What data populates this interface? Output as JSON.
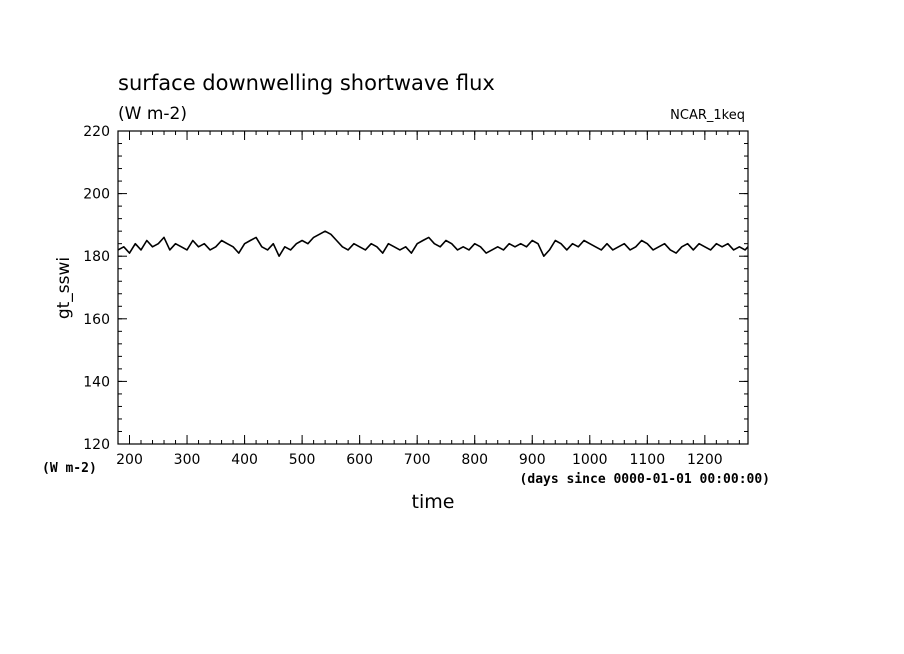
{
  "chart_data": {
    "type": "line",
    "title": "surface downwelling shortwave flux",
    "subtitle": "(W m-2)",
    "source_label": "NCAR_1keq",
    "xlabel": "time",
    "x_units": "(days since 0000-01-01 00:00:00)",
    "ylabel": "gt_sswi",
    "y_units": "(W m-2)",
    "xlim": [
      180,
      1275
    ],
    "ylim": [
      120,
      220
    ],
    "x_ticks": [
      200,
      300,
      400,
      500,
      600,
      700,
      800,
      900,
      1000,
      1100,
      1200
    ],
    "y_ticks": [
      120,
      140,
      160,
      180,
      200,
      220
    ],
    "grid": false,
    "series": [
      {
        "x": [
          180,
          190,
          200,
          210,
          220,
          230,
          240,
          250,
          260,
          270,
          280,
          290,
          300,
          310,
          320,
          330,
          340,
          350,
          360,
          370,
          380,
          390,
          400,
          410,
          420,
          430,
          440,
          450,
          460,
          470,
          480,
          490,
          500,
          510,
          520,
          530,
          540,
          550,
          560,
          570,
          580,
          590,
          600,
          610,
          620,
          630,
          640,
          650,
          660,
          670,
          680,
          690,
          700,
          710,
          720,
          730,
          740,
          750,
          760,
          770,
          780,
          790,
          800,
          810,
          820,
          830,
          840,
          850,
          860,
          870,
          880,
          890,
          900,
          910,
          920,
          930,
          940,
          950,
          960,
          970,
          980,
          990,
          1000,
          1010,
          1020,
          1030,
          1040,
          1050,
          1060,
          1070,
          1080,
          1090,
          1100,
          1110,
          1120,
          1130,
          1140,
          1150,
          1160,
          1170,
          1180,
          1190,
          1200,
          1210,
          1220,
          1230,
          1240,
          1250,
          1260,
          1270,
          1275
        ],
        "y": [
          182,
          183,
          181,
          184,
          182,
          185,
          183,
          184,
          186,
          182,
          184,
          183,
          182,
          185,
          183,
          184,
          182,
          183,
          185,
          184,
          183,
          181,
          184,
          185,
          186,
          183,
          182,
          184,
          180,
          183,
          182,
          184,
          185,
          184,
          186,
          187,
          188,
          187,
          185,
          183,
          182,
          184,
          183,
          182,
          184,
          183,
          181,
          184,
          183,
          182,
          183,
          181,
          184,
          185,
          186,
          184,
          183,
          185,
          184,
          182,
          183,
          182,
          184,
          183,
          181,
          182,
          183,
          182,
          184,
          183,
          184,
          183,
          185,
          184,
          180,
          182,
          185,
          184,
          182,
          184,
          183,
          185,
          184,
          183,
          182,
          184,
          182,
          183,
          184,
          182,
          183,
          185,
          184,
          182,
          183,
          184,
          182,
          181,
          183,
          184,
          182,
          184,
          183,
          182,
          184,
          183,
          184,
          182,
          183,
          182,
          183
        ]
      }
    ]
  }
}
